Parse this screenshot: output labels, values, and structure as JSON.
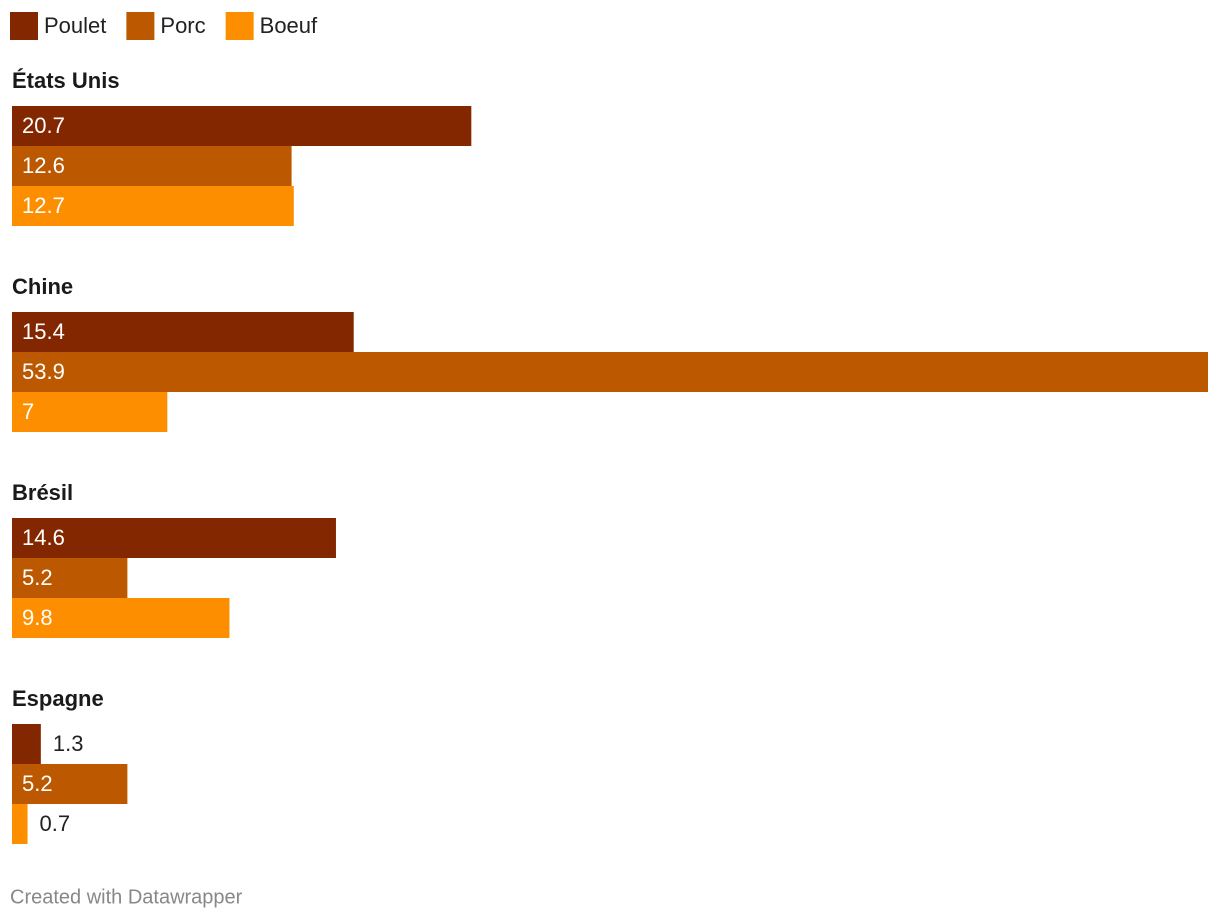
{
  "chart_data": {
    "type": "bar",
    "orientation": "horizontal",
    "categories": [
      "États Unis",
      "Chine",
      "Brésil",
      "Espagne"
    ],
    "series": [
      {
        "name": "Poulet",
        "color": "#832700",
        "values": [
          20.7,
          15.4,
          14.6,
          1.3
        ]
      },
      {
        "name": "Porc",
        "color": "#bb5800",
        "values": [
          12.6,
          53.9,
          5.2,
          5.2
        ]
      },
      {
        "name": "Boeuf",
        "color": "#fd8e00",
        "values": [
          12.7,
          7,
          9.8,
          0.7
        ]
      }
    ],
    "legend": "top-left",
    "credit": "Created with Datawrapper"
  }
}
